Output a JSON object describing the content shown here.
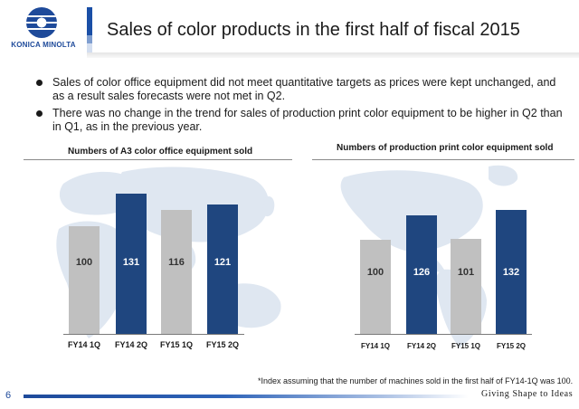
{
  "header": {
    "logo_text": "KONICA MINOLTA",
    "title": "Sales of color products in the first half of fiscal 2015"
  },
  "bullets": [
    "Sales of color office equipment did not meet quantitative targets as prices were kept unchanged, and as a result sales forecasts were not met in Q2.",
    "There was no change in the trend for sales of production print color equipment to be higher in Q2 than in Q1, as in the previous year."
  ],
  "chart_data": [
    {
      "type": "bar",
      "title": "Numbers of A3 color office equipment sold",
      "categories": [
        "FY14 1Q",
        "FY14 2Q",
        "FY15 1Q",
        "FY15 2Q"
      ],
      "values": [
        100,
        131,
        116,
        121
      ],
      "colors": [
        "#c0c0c0",
        "#1f467f",
        "#c0c0c0",
        "#1f467f"
      ],
      "xlabel": "",
      "ylabel": "",
      "ylim": [
        0,
        135
      ],
      "grid": false
    },
    {
      "type": "bar",
      "title": "Numbers of production print color equipment sold",
      "categories": [
        "FY14 1Q",
        "FY14 2Q",
        "FY15 1Q",
        "FY15 2Q"
      ],
      "values": [
        100,
        126,
        101,
        132
      ],
      "colors": [
        "#c0c0c0",
        "#1f467f",
        "#c0c0c0",
        "#1f467f"
      ],
      "xlabel": "",
      "ylabel": "",
      "ylim": [
        0,
        135
      ],
      "grid": false
    }
  ],
  "footer": {
    "footnote": "*Index assuming that the number of machines sold in the first half of FY14-1Q was 100.",
    "page_number": "6",
    "tagline": "Giving Shape to Ideas"
  },
  "colors": {
    "brand_blue": "#1e4a9a",
    "bar_navy": "#1f467f",
    "bar_gray": "#c0c0c0"
  }
}
